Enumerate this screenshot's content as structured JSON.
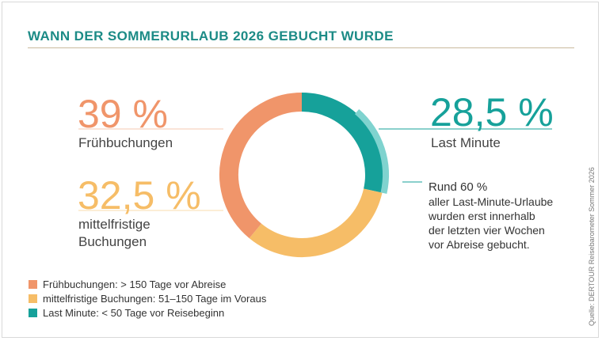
{
  "title": "WANN DER SOMMERURLAUB 2026 GEBUCHT WURDE",
  "labels": {
    "early_value": "39 %",
    "early_name": "Frühbuchungen",
    "mid_value": "32,5 %",
    "mid_name_line1": "mittelfristige",
    "mid_name_line2": "Buchungen",
    "last_value": "28,5 %",
    "last_name": "Last Minute"
  },
  "note": {
    "head": "Rund 60 %",
    "line1": "aller Last-Minute-Urlaube",
    "line2": "wurden erst innerhalb",
    "line3": "der letzten vier Wochen",
    "line4": "vor Abreise gebucht."
  },
  "legend": [
    {
      "text": "Frühbuchungen: > 150 Tage vor Abreise",
      "color": "#f0956a"
    },
    {
      "text": "mittelfristige Buchungen: 51–150 Tage im Voraus",
      "color": "#f6bd67"
    },
    {
      "text": "Last Minute: < 50 Tage vor Reisebeginn",
      "color": "#16a19a"
    }
  ],
  "source": "Quelle: DERTOUR Reisebarometer Sommer 2026",
  "colors": {
    "early": "#f0956a",
    "mid": "#f6bd67",
    "last": "#16a19a",
    "last_light": "#7fd3cf",
    "title": "#1c8b86"
  },
  "chart_data": {
    "type": "pie",
    "donut": true,
    "categories": [
      "Frühbuchungen",
      "mittelfristige Buchungen",
      "Last Minute"
    ],
    "values": [
      39,
      32.5,
      28.5
    ],
    "unit": "%",
    "sub_share": {
      "of": "Last Minute",
      "value": 60,
      "label": "Rund 60 %"
    }
  }
}
